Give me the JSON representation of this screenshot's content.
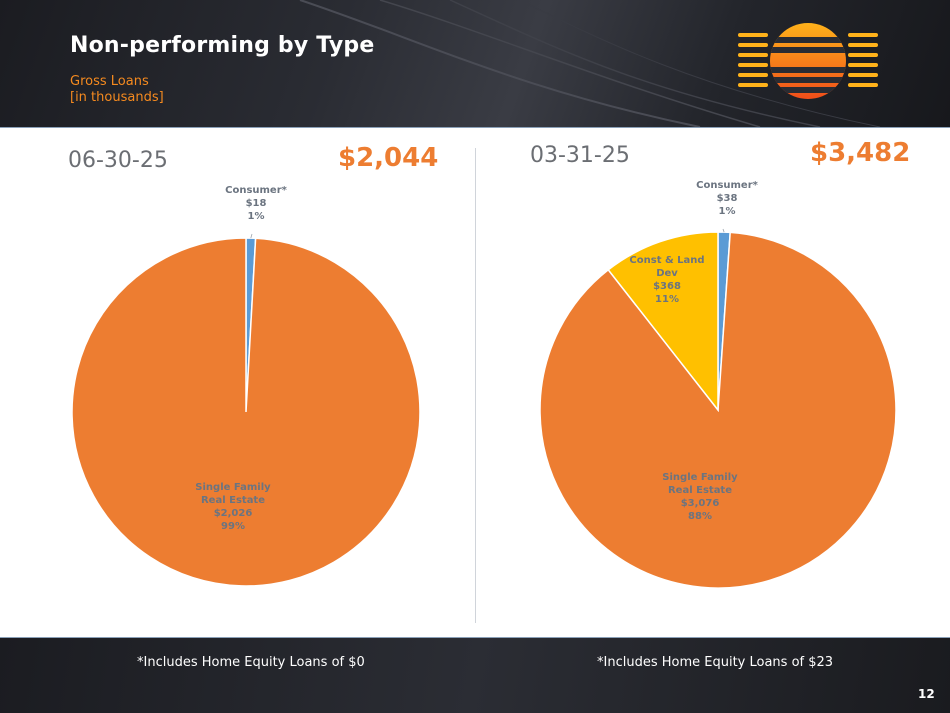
{
  "slide": {
    "title": "Non-performing by Type",
    "subtitle_line1": "Gross Loans",
    "subtitle_line2": "[in thousands]",
    "page_number": "12"
  },
  "footnotes": {
    "left": "*Includes Home Equity Loans of $0",
    "right": "*Includes Home Equity Loans of $23"
  },
  "colors": {
    "orange": "#ED7D31",
    "blue": "#5B9BD5",
    "gold": "#FFC000",
    "accent": "#F58A1F"
  },
  "chart_data": [
    {
      "type": "pie",
      "date_label": "06-30-25",
      "total_label": "$2,044",
      "slices": [
        {
          "name_lines": [
            "Consumer*"
          ],
          "value": 18,
          "value_label": "$18",
          "percent_label": "1%",
          "color": "#5B9BD5"
        },
        {
          "name_lines": [
            "Single Family",
            "Real Estate"
          ],
          "value": 2026,
          "value_label": "$2,026",
          "percent_label": "99%",
          "color": "#ED7D31"
        }
      ]
    },
    {
      "type": "pie",
      "date_label": "03-31-25",
      "total_label": "$3,482",
      "slices": [
        {
          "name_lines": [
            "Consumer*"
          ],
          "value": 38,
          "value_label": "$38",
          "percent_label": "1%",
          "color": "#5B9BD5"
        },
        {
          "name_lines": [
            "Single Family",
            "Real Estate"
          ],
          "value": 3076,
          "value_label": "$3,076",
          "percent_label": "88%",
          "color": "#ED7D31"
        },
        {
          "name_lines": [
            "Const & Land",
            "Dev"
          ],
          "value": 368,
          "value_label": "$368",
          "percent_label": "11%",
          "color": "#FFC000"
        }
      ]
    }
  ]
}
